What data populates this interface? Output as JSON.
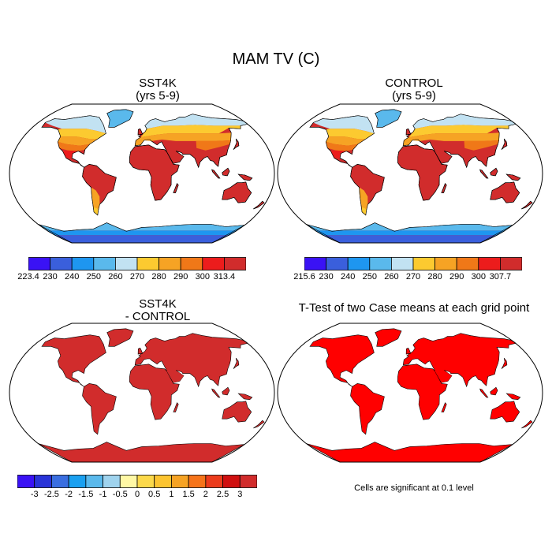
{
  "title": "MAM TV (C)",
  "panels": [
    {
      "title": "SST4K",
      "subtitle": "(yrs 5-9)"
    },
    {
      "title": "CONTROL",
      "subtitle": "(yrs 5-9)"
    },
    {
      "title": "SST4K",
      "subtitle": "- CONTROL"
    },
    {
      "title": "T-Test of two Case means at each grid point",
      "subtitle": ""
    }
  ],
  "colorbars": [
    {
      "colors": [
        "#3a12f5",
        "#3a5fdc",
        "#1e96f0",
        "#5ab9ec",
        "#c2e2f2",
        "#fcca30",
        "#f6a324",
        "#f07818",
        "#ec1c1c",
        "#d12c2c"
      ],
      "labels": [
        "223.4",
        "230",
        "240",
        "250",
        "260",
        "270",
        "280",
        "290",
        "300",
        "313.4"
      ]
    },
    {
      "colors": [
        "#3a12f5",
        "#3a5fdc",
        "#1e96f0",
        "#5ab9ec",
        "#c2e2f2",
        "#fcca30",
        "#f6a324",
        "#f07818",
        "#ec1c1c",
        "#d12c2c"
      ],
      "labels": [
        "215.6",
        "230",
        "240",
        "250",
        "260",
        "270",
        "280",
        "290",
        "300",
        "307.7"
      ]
    },
    {
      "colors": [
        "#3a12f5",
        "#2934d8",
        "#3a6ee0",
        "#1aa0f0",
        "#5ab9ec",
        "#9fd3ee",
        "#fff8a5",
        "#fcd94a",
        "#fcc430",
        "#f6a324",
        "#f6741a",
        "#ec3c1c",
        "#d01010",
        "#d12c2c"
      ],
      "labels": [
        "-3",
        "-2.5",
        "-2",
        "-1.5",
        "-1",
        "-0.5",
        "0",
        "0.5",
        "1",
        "1.5",
        "2",
        "2.5",
        "3"
      ]
    }
  ],
  "note": "Cells are significant at 0.1 level",
  "map_styles": [
    "climate",
    "climate",
    "diff",
    "ttest"
  ],
  "palette": {
    "diff_fill": "#d12c2c",
    "ttest_fill": "#ff0000",
    "hot": "#d12c2c",
    "warm": "#ec1c1c",
    "mid": "#f07818",
    "temperate": "#f6a324",
    "cool": "#fcca30",
    "cold": "#c2e2f2",
    "icy": "#5ab9ec",
    "polar": "#1e96f0",
    "deep": "#3a5fdc"
  }
}
